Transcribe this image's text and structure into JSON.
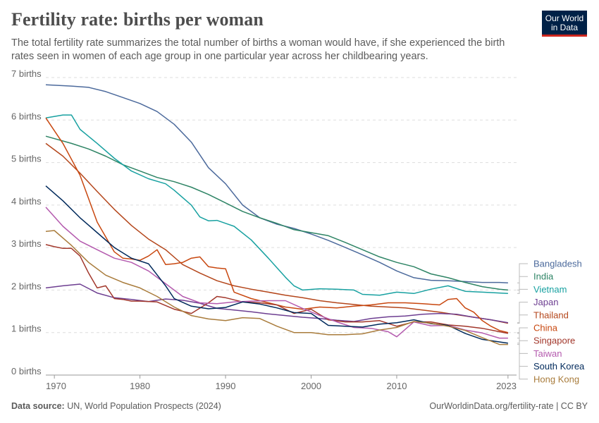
{
  "header": {
    "title": "Fertility rate: births per woman",
    "subtitle": "The total fertility rate summarizes the total number of births a woman would have, if she experienced the birth rates seen in women of each age group in one particular year across her childbearing years.",
    "logo_line1": "Our World",
    "logo_line2": "in Data"
  },
  "footer": {
    "source_label": "Data source:",
    "source_text": "UN, World Population Prospects (2024)",
    "url_text": "OurWorldinData.org/fertility-rate | CC BY"
  },
  "colors": {
    "Bangladesh": "#4c6a9c",
    "India": "#2e8465",
    "Vietnam": "#18a1a1",
    "Thailand": "#b4461b",
    "Japan": "#6d3e91",
    "China": "#c8470f",
    "Singapore": "#a2372b",
    "Taiwan": "#b45aae",
    "South Korea": "#00295b",
    "Hong Kong": "#a97c3c"
  },
  "chart_data": {
    "type": "line",
    "title": "Fertility rate: births per woman",
    "xlabel": "",
    "ylabel": "",
    "xlim": [
      1969,
      2024
    ],
    "ylim": [
      0,
      7
    ],
    "x_ticks": [
      1970,
      1980,
      1990,
      2000,
      2010,
      2023
    ],
    "x_tick_labels": [
      "1970",
      "1980",
      "1990",
      "2000",
      "2010",
      "2023"
    ],
    "y_ticks": [
      0,
      1,
      2,
      3,
      4,
      5,
      6,
      7
    ],
    "y_tick_labels": [
      "0 births",
      "1 births",
      "2 births",
      "3 births",
      "4 births",
      "5 births",
      "6 births",
      "7 births"
    ],
    "grid": "horizontal dashed",
    "legend": "right (direct labels)",
    "series": [
      {
        "name": "Bangladesh",
        "x": [
          1969,
          1972,
          1974,
          1976,
          1978,
          1980,
          1982,
          1984,
          1986,
          1988,
          1990,
          1992,
          1994,
          1996,
          1998,
          2000,
          2002,
          2004,
          2006,
          2008,
          2010,
          2012,
          2014,
          2016,
          2018,
          2020,
          2022,
          2023
        ],
        "y": [
          6.83,
          6.8,
          6.77,
          6.67,
          6.53,
          6.39,
          6.2,
          5.9,
          5.48,
          4.88,
          4.5,
          4.0,
          3.7,
          3.55,
          3.45,
          3.32,
          3.17,
          3.0,
          2.83,
          2.65,
          2.45,
          2.29,
          2.23,
          2.22,
          2.2,
          2.18,
          2.18,
          2.17
        ]
      },
      {
        "name": "India",
        "x": [
          1969,
          1972,
          1974,
          1976,
          1978,
          1980,
          1982,
          1984,
          1986,
          1988,
          1990,
          1992,
          1994,
          1996,
          1998,
          2000,
          2002,
          2004,
          2006,
          2008,
          2010,
          2012,
          2014,
          2016,
          2018,
          2020,
          2022,
          2023
        ],
        "y": [
          5.62,
          5.45,
          5.32,
          5.15,
          4.95,
          4.8,
          4.65,
          4.55,
          4.42,
          4.25,
          4.05,
          3.85,
          3.7,
          3.57,
          3.42,
          3.35,
          3.28,
          3.12,
          2.95,
          2.78,
          2.65,
          2.55,
          2.38,
          2.29,
          2.18,
          2.08,
          2.02,
          2.0
        ]
      },
      {
        "name": "Vietnam",
        "x": [
          1969,
          1971,
          1972,
          1973,
          1975,
          1977,
          1979,
          1981,
          1983,
          1984,
          1986,
          1987,
          1988,
          1989,
          1990,
          1991,
          1993,
          1995,
          1997,
          1998,
          1999,
          2001,
          2003,
          2005,
          2006,
          2008,
          2010,
          2012,
          2014,
          2016,
          2018,
          2020,
          2022,
          2023
        ],
        "y": [
          6.05,
          6.12,
          6.12,
          5.78,
          5.45,
          5.1,
          4.8,
          4.62,
          4.5,
          4.35,
          4.0,
          3.72,
          3.63,
          3.64,
          3.57,
          3.5,
          3.18,
          2.75,
          2.3,
          2.1,
          2.0,
          2.03,
          2.02,
          2.0,
          1.9,
          1.88,
          1.95,
          1.92,
          2.02,
          2.1,
          1.97,
          1.95,
          1.93,
          1.92
        ]
      },
      {
        "name": "Thailand",
        "x": [
          1969,
          1971,
          1973,
          1975,
          1977,
          1979,
          1981,
          1983,
          1985,
          1987,
          1989,
          1991,
          1993,
          1995,
          1997,
          1999,
          2001,
          2003,
          2005,
          2007,
          2009,
          2011,
          2013,
          2015,
          2017,
          2019,
          2021,
          2023
        ],
        "y": [
          5.45,
          5.15,
          4.75,
          4.32,
          3.9,
          3.52,
          3.2,
          2.95,
          2.6,
          2.4,
          2.22,
          2.1,
          2.02,
          1.95,
          1.88,
          1.82,
          1.75,
          1.7,
          1.66,
          1.62,
          1.6,
          1.58,
          1.53,
          1.48,
          1.42,
          1.36,
          1.3,
          1.22
        ]
      },
      {
        "name": "Japan",
        "x": [
          1969,
          1971,
          1973,
          1975,
          1977,
          1979,
          1981,
          1983,
          1985,
          1987,
          1989,
          1991,
          1993,
          1995,
          1997,
          1999,
          2001,
          2003,
          2005,
          2007,
          2009,
          2011,
          2013,
          2015,
          2017,
          2019,
          2021,
          2023
        ],
        "y": [
          2.05,
          2.1,
          2.14,
          1.93,
          1.82,
          1.78,
          1.73,
          1.79,
          1.76,
          1.69,
          1.57,
          1.53,
          1.49,
          1.44,
          1.4,
          1.36,
          1.33,
          1.29,
          1.26,
          1.33,
          1.37,
          1.39,
          1.43,
          1.45,
          1.43,
          1.36,
          1.3,
          1.23
        ]
      },
      {
        "name": "China",
        "x": [
          1969,
          1971,
          1973,
          1975,
          1977,
          1978,
          1979,
          1980,
          1981,
          1982,
          1983,
          1984,
          1985,
          1986,
          1987,
          1988,
          1989,
          1990,
          1991,
          1993,
          1995,
          1997,
          1999,
          2001,
          2003,
          2005,
          2007,
          2009,
          2011,
          2013,
          2015,
          2016,
          2017,
          2018,
          2019,
          2020,
          2021,
          2022,
          2023
        ],
        "y": [
          6.05,
          5.45,
          4.7,
          3.6,
          2.9,
          2.75,
          2.73,
          2.7,
          2.8,
          2.95,
          2.6,
          2.62,
          2.65,
          2.75,
          2.78,
          2.55,
          2.52,
          2.5,
          1.95,
          1.8,
          1.7,
          1.6,
          1.55,
          1.6,
          1.58,
          1.62,
          1.65,
          1.7,
          1.7,
          1.68,
          1.65,
          1.78,
          1.8,
          1.58,
          1.48,
          1.28,
          1.15,
          1.05,
          1.0
        ]
      },
      {
        "name": "Singapore",
        "x": [
          1969,
          1970,
          1971,
          1972,
          1973,
          1974,
          1975,
          1976,
          1977,
          1978,
          1979,
          1980,
          1982,
          1984,
          1986,
          1988,
          1989,
          1990,
          1992,
          1994,
          1996,
          1998,
          2000,
          2002,
          2004,
          2006,
          2008,
          2010,
          2012,
          2014,
          2016,
          2018,
          2020,
          2022,
          2023
        ],
        "y": [
          3.07,
          3.02,
          2.98,
          2.98,
          2.8,
          2.4,
          2.05,
          2.1,
          1.8,
          1.78,
          1.74,
          1.74,
          1.72,
          1.55,
          1.45,
          1.7,
          1.85,
          1.82,
          1.72,
          1.7,
          1.65,
          1.45,
          1.55,
          1.3,
          1.25,
          1.25,
          1.28,
          1.15,
          1.25,
          1.25,
          1.18,
          1.15,
          1.1,
          1.02,
          0.98
        ]
      },
      {
        "name": "Taiwan",
        "x": [
          1969,
          1971,
          1973,
          1975,
          1977,
          1979,
          1981,
          1983,
          1985,
          1987,
          1989,
          1991,
          1993,
          1995,
          1997,
          1999,
          2001,
          2003,
          2005,
          2007,
          2009,
          2010,
          2012,
          2014,
          2016,
          2018,
          2020,
          2022,
          2023
        ],
        "y": [
          3.95,
          3.5,
          3.15,
          2.95,
          2.75,
          2.65,
          2.45,
          2.15,
          1.85,
          1.7,
          1.68,
          1.72,
          1.74,
          1.75,
          1.75,
          1.57,
          1.4,
          1.25,
          1.12,
          1.1,
          1.02,
          0.9,
          1.25,
          1.16,
          1.17,
          1.06,
          0.99,
          0.87,
          0.87
        ]
      },
      {
        "name": "South Korea",
        "x": [
          1969,
          1971,
          1973,
          1975,
          1977,
          1979,
          1981,
          1983,
          1984,
          1986,
          1988,
          1990,
          1992,
          1994,
          1996,
          1998,
          2000,
          2002,
          2004,
          2006,
          2008,
          2010,
          2012,
          2014,
          2016,
          2018,
          2020,
          2022,
          2023
        ],
        "y": [
          4.45,
          4.1,
          3.7,
          3.35,
          3.0,
          2.75,
          2.62,
          2.1,
          1.8,
          1.62,
          1.56,
          1.59,
          1.72,
          1.67,
          1.58,
          1.47,
          1.45,
          1.17,
          1.15,
          1.13,
          1.2,
          1.23,
          1.3,
          1.21,
          1.17,
          0.98,
          0.84,
          0.78,
          0.75
        ]
      },
      {
        "name": "Hong Kong",
        "x": [
          1969,
          1970,
          1972,
          1974,
          1976,
          1978,
          1980,
          1982,
          1984,
          1986,
          1988,
          1990,
          1992,
          1994,
          1996,
          1998,
          2000,
          2002,
          2004,
          2006,
          2008,
          2010,
          2012,
          2014,
          2016,
          2018,
          2020,
          2022,
          2023
        ],
        "y": [
          3.38,
          3.4,
          3.05,
          2.65,
          2.35,
          2.18,
          2.05,
          1.85,
          1.6,
          1.4,
          1.32,
          1.28,
          1.35,
          1.33,
          1.15,
          1.0,
          1.0,
          0.95,
          0.95,
          0.97,
          1.06,
          1.12,
          1.26,
          1.22,
          1.15,
          1.05,
          0.88,
          0.72,
          0.72
        ]
      }
    ]
  }
}
